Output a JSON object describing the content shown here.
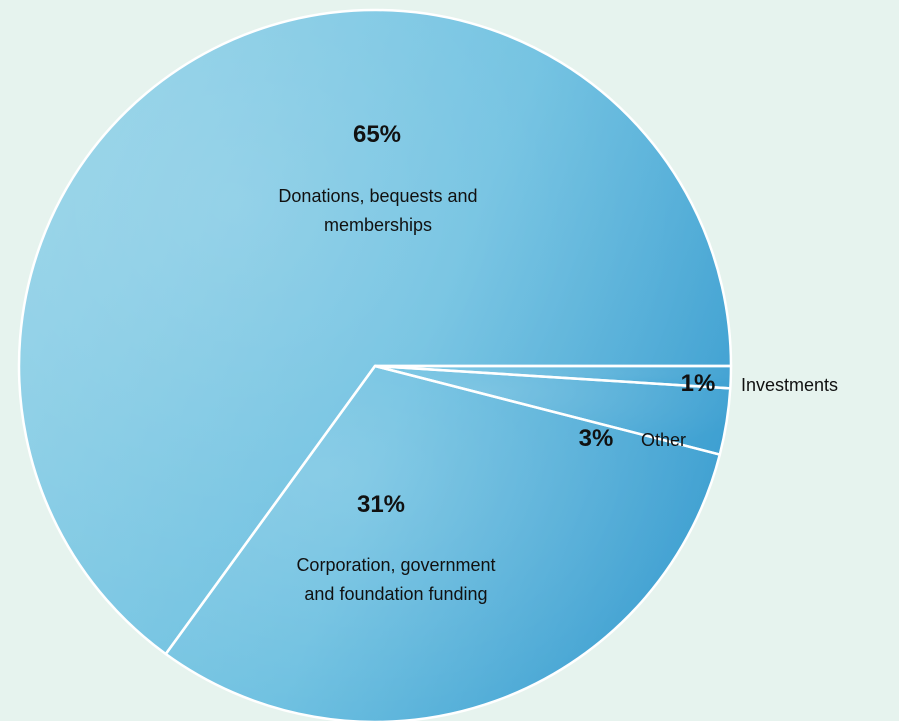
{
  "chart_data": {
    "type": "pie",
    "slices": [
      {
        "label": "Donations, bequests and memberships",
        "value": 65,
        "value_label": "65%"
      },
      {
        "label": "Corporation, government and foundation funding",
        "value": 31,
        "value_label": "31%"
      },
      {
        "label": "Other",
        "value": 3,
        "value_label": "3%"
      },
      {
        "label": "Investments",
        "value": 1,
        "value_label": "1%"
      }
    ],
    "colors": {
      "background": "#e6f3ee",
      "slice_light": "#7ec8e3",
      "slice_dark": "#3b9fcf",
      "separator": "#ffffff",
      "text": "#111111"
    }
  }
}
